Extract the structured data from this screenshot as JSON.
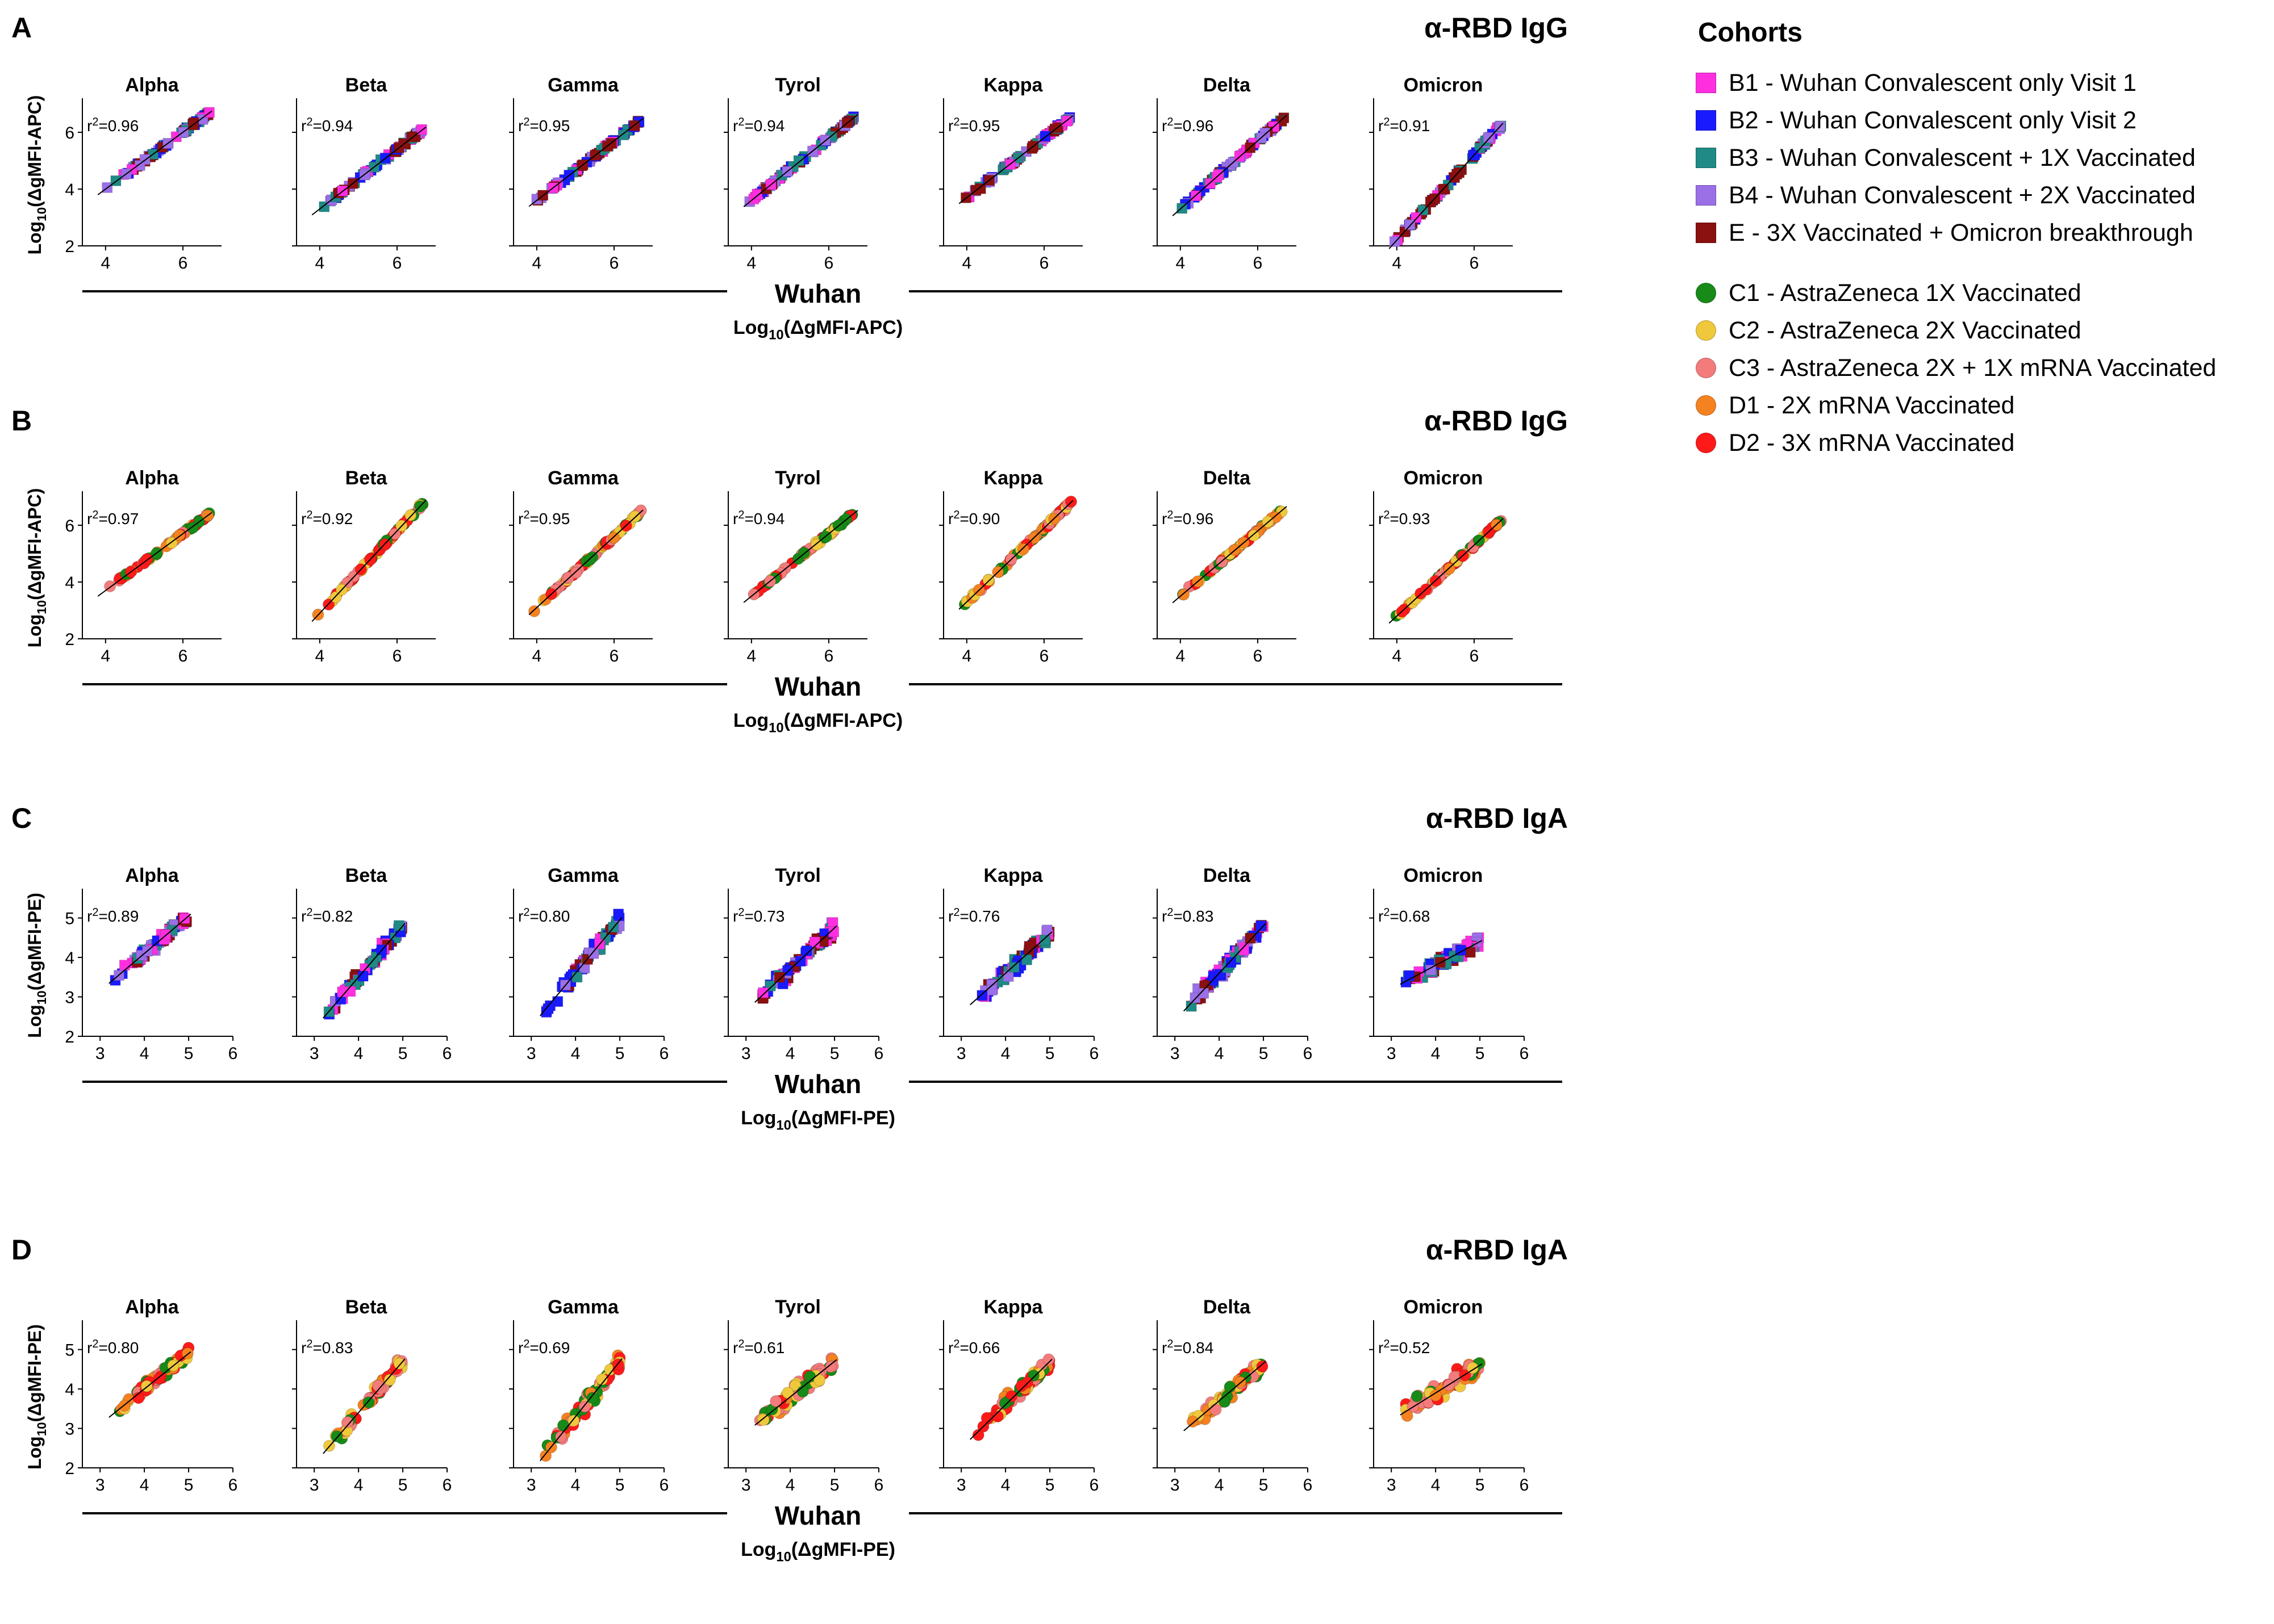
{
  "cohort_legend": {
    "title": "Cohorts",
    "square_items": [
      {
        "label": "B1 - Wuhan Convalescent only Visit 1",
        "color": "#ff2fe0"
      },
      {
        "label": "B2 - Wuhan Convalescent only Visit 2",
        "color": "#1a1aff"
      },
      {
        "label": "B3 - Wuhan Convalescent + 1X Vaccinated",
        "color": "#1f8a86"
      },
      {
        "label": "B4 - Wuhan Convalescent + 2X Vaccinated",
        "color": "#9b6fe6"
      },
      {
        "label": "E - 3X Vaccinated + Omicron breakthrough",
        "color": "#8b1010"
      }
    ],
    "circle_items": [
      {
        "label": "C1 - AstraZeneca 1X Vaccinated",
        "color": "#178a17"
      },
      {
        "label": "C2 - AstraZeneca 2X Vaccinated",
        "color": "#f0c83c"
      },
      {
        "label": "C3 - AstraZeneca 2X + 1X mRNA Vaccinated",
        "color": "#f47b7b"
      },
      {
        "label": "D1 - 2X mRNA Vaccinated",
        "color": "#f58220"
      },
      {
        "label": "D2 - 3X mRNA Vaccinated",
        "color": "#ff1a1a"
      }
    ]
  },
  "chart_data": [
    {
      "panel": "A",
      "type": "scatter",
      "title": "α-RBD IgG",
      "marker": "square",
      "cohorts": [
        "B1",
        "B2",
        "B3",
        "B4",
        "E"
      ],
      "xlabel": "Wuhan",
      "ylabel": "Log10(ΔgMFI-APC)",
      "shared_xlabel": "Log10(ΔgMFI-APC)",
      "xlim": [
        3.4,
        7.0
      ],
      "ylim": [
        2,
        7
      ],
      "xticks": [
        4,
        6
      ],
      "yticks": [
        2,
        4,
        6
      ],
      "x_axis_extends": false,
      "subplots": [
        {
          "variant": "Alpha",
          "r2": "0.96",
          "fit": {
            "slope": 1.0,
            "intercept": 0.0
          }
        },
        {
          "variant": "Beta",
          "r2": "0.94",
          "fit": {
            "slope": 1.05,
            "intercept": -0.9
          }
        },
        {
          "variant": "Gamma",
          "r2": "0.95",
          "fit": {
            "slope": 1.05,
            "intercept": -0.6
          }
        },
        {
          "variant": "Tyrol",
          "r2": "0.94",
          "fit": {
            "slope": 1.1,
            "intercept": -0.8
          }
        },
        {
          "variant": "Kappa",
          "r2": "0.95",
          "fit": {
            "slope": 1.05,
            "intercept": -0.5
          }
        },
        {
          "variant": "Delta",
          "r2": "0.96",
          "fit": {
            "slope": 1.2,
            "intercept": -1.5
          }
        },
        {
          "variant": "Omicron",
          "r2": "0.91",
          "fit": {
            "slope": 1.5,
            "intercept": -3.8
          }
        }
      ]
    },
    {
      "panel": "B",
      "type": "scatter",
      "title": "α-RBD IgG",
      "marker": "circle",
      "cohorts": [
        "C1",
        "C2",
        "C3",
        "D1",
        "D2"
      ],
      "xlabel": "Wuhan",
      "ylabel": "Log10(ΔgMFI-APC)",
      "shared_xlabel": "Log10(ΔgMFI-APC)",
      "xlim": [
        3.4,
        7.0
      ],
      "ylim": [
        2,
        7
      ],
      "xticks": [
        4,
        6
      ],
      "yticks": [
        2,
        4,
        6
      ],
      "x_axis_extends": false,
      "subplots": [
        {
          "variant": "Alpha",
          "r2": "0.97",
          "fit": {
            "slope": 1.0,
            "intercept": -0.3
          }
        },
        {
          "variant": "Beta",
          "r2": "0.92",
          "fit": {
            "slope": 1.45,
            "intercept": -2.9
          }
        },
        {
          "variant": "Gamma",
          "r2": "0.95",
          "fit": {
            "slope": 1.25,
            "intercept": -1.9
          }
        },
        {
          "variant": "Tyrol",
          "r2": "0.94",
          "fit": {
            "slope": 1.1,
            "intercept": -0.9
          }
        },
        {
          "variant": "Kappa",
          "r2": "0.90",
          "fit": {
            "slope": 1.3,
            "intercept": -1.9
          }
        },
        {
          "variant": "Delta",
          "r2": "0.96",
          "fit": {
            "slope": 1.15,
            "intercept": -1.1
          }
        },
        {
          "variant": "Omicron",
          "r2": "0.93",
          "fit": {
            "slope": 1.25,
            "intercept": -2.2
          }
        }
      ]
    },
    {
      "panel": "C",
      "type": "scatter",
      "title": "α-RBD IgA",
      "marker": "square",
      "cohorts": [
        "B1",
        "B2",
        "B3",
        "B4",
        "E"
      ],
      "xlabel": "Wuhan",
      "ylabel": "Log10(ΔgMFI-PE)",
      "shared_xlabel": "Log10(ΔgMFI-PE)",
      "xlim": [
        2.6,
        6.0
      ],
      "ylim": [
        2,
        5.6
      ],
      "xticks": [
        3,
        4,
        5,
        6
      ],
      "yticks": [
        2,
        3,
        4,
        5
      ],
      "x_axis_extends": true,
      "subplots": [
        {
          "variant": "Alpha",
          "r2": "0.89",
          "fit": {
            "slope": 0.95,
            "intercept": 0.3
          }
        },
        {
          "variant": "Beta",
          "r2": "0.82",
          "fit": {
            "slope": 1.3,
            "intercept": -1.7
          }
        },
        {
          "variant": "Gamma",
          "r2": "0.80",
          "fit": {
            "slope": 1.35,
            "intercept": -1.8
          }
        },
        {
          "variant": "Tyrol",
          "r2": "0.73",
          "fit": {
            "slope": 1.05,
            "intercept": -0.5
          }
        },
        {
          "variant": "Kappa",
          "r2": "0.76",
          "fit": {
            "slope": 1.0,
            "intercept": -0.4
          }
        },
        {
          "variant": "Delta",
          "r2": "0.83",
          "fit": {
            "slope": 1.2,
            "intercept": -1.2
          }
        },
        {
          "variant": "Omicron",
          "r2": "0.68",
          "fit": {
            "slope": 0.6,
            "intercept": 1.4
          }
        }
      ]
    },
    {
      "panel": "D",
      "type": "scatter",
      "title": "α-RBD IgA",
      "marker": "circle",
      "cohorts": [
        "C1",
        "C2",
        "C3",
        "D1",
        "D2"
      ],
      "xlabel": "Wuhan",
      "ylabel": "Log10(ΔgMFI-PE)",
      "shared_xlabel": "Log10(ΔgMFI-PE)",
      "xlim": [
        2.6,
        6.0
      ],
      "ylim": [
        2,
        5.6
      ],
      "xticks": [
        3,
        4,
        5,
        6
      ],
      "yticks": [
        2,
        3,
        4,
        5
      ],
      "x_axis_extends": true,
      "subplots": [
        {
          "variant": "Alpha",
          "r2": "0.80",
          "fit": {
            "slope": 0.9,
            "intercept": 0.4
          }
        },
        {
          "variant": "Beta",
          "r2": "0.83",
          "fit": {
            "slope": 1.3,
            "intercept": -1.8
          }
        },
        {
          "variant": "Gamma",
          "r2": "0.69",
          "fit": {
            "slope": 1.4,
            "intercept": -2.3
          }
        },
        {
          "variant": "Tyrol",
          "r2": "0.61",
          "fit": {
            "slope": 0.9,
            "intercept": 0.2
          }
        },
        {
          "variant": "Kappa",
          "r2": "0.66",
          "fit": {
            "slope": 1.1,
            "intercept": -0.8
          }
        },
        {
          "variant": "Delta",
          "r2": "0.84",
          "fit": {
            "slope": 0.95,
            "intercept": -0.1
          }
        },
        {
          "variant": "Omicron",
          "r2": "0.52",
          "fit": {
            "slope": 0.7,
            "intercept": 1.1
          }
        }
      ]
    }
  ]
}
